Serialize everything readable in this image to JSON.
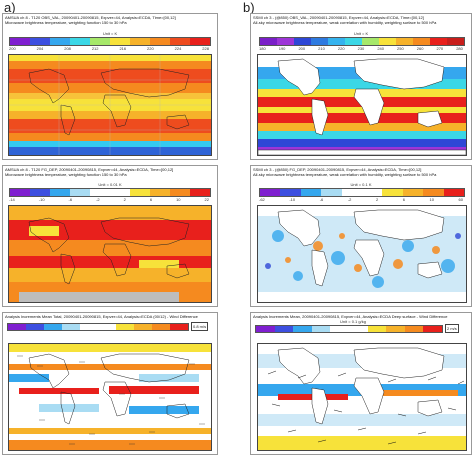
{
  "labels": {
    "a": "a)",
    "b": "b)"
  },
  "panels": [
    {
      "id": "a1",
      "title1": "AMSUA ch 8 - T120 OBS_VAL, 20090401-20090815, Expver=44, Analysis=ECDA, Time=[00,12]",
      "title2": "Microwave brightness temperature, weighting function 150 to 30 hPa",
      "unit": "Unit = K",
      "ticks": [
        "200",
        "204",
        "208",
        "212",
        "216",
        "220",
        "224",
        "228"
      ]
    },
    {
      "id": "b1",
      "title1": "SSMI ch 3 - (@850) OBS_VAL, 20090401-20090815, Expver=44, Analysis=ECDA, Time=[00,12]",
      "title2": "All-sky microwave brightness temperature, weak correlation with humidity, weighting surface to 500 hPa",
      "unit": "Unit = K",
      "ticks": [
        "180",
        "190",
        "200",
        "210",
        "220",
        "230",
        "240",
        "250",
        "260",
        "270",
        "280"
      ]
    },
    {
      "id": "a2",
      "title1": "AMSUA ch 8 - T120 FG_DEP, 20090401-20090815, Expver=44, Analysis=ECDA, Time=[00,12]",
      "title2": "Microwave brightness temperature, weighting function 150 to 30 hPa",
      "unit": "Unit = 0.01 K",
      "ticks": [
        "-14",
        "-10",
        "-6",
        "-2",
        "2",
        "6",
        "10",
        "22"
      ]
    },
    {
      "id": "b2",
      "title1": "SSMI ch 3 - (@850) FG_DEP, 20090401-20090815, Expver=44, Analysis=ECDA, Time=[00,12]",
      "title2": "All-sky microwave brightness temperature, weak correlation with humidity, weighting surface to 500 hPa",
      "unit": "Unit = 0.1 K",
      "ticks": [
        "-62",
        "-10",
        "-6",
        "-2",
        "2",
        "6",
        "10",
        "60"
      ]
    },
    {
      "id": "a3",
      "title1": "Analysis Increments Mean Total, 20090401-20090815, Expver=44, Analysis=ECDA (00/12) - Wind Difference",
      "title2": "",
      "unit": "",
      "ticks": [],
      "ref": "0.8 m/s"
    },
    {
      "id": "b3",
      "title1": "Analysis Increments Mean, 20090401-20090815, Expver=44, Analysis=ECDA Deep surface - Wind Difference",
      "title2": "",
      "unit": "Unit = 0.1 g/kg",
      "ticks": [],
      "ref": "2 m/s"
    }
  ],
  "colors": {
    "red": "#e8201c",
    "orange": "#f58a1f",
    "yellow": "#f7e23a",
    "cyan": "#35c9f0",
    "blue": "#2e63d6",
    "purple": "#8a3bd6",
    "white": "#ffffff",
    "land": "#ffffff"
  }
}
